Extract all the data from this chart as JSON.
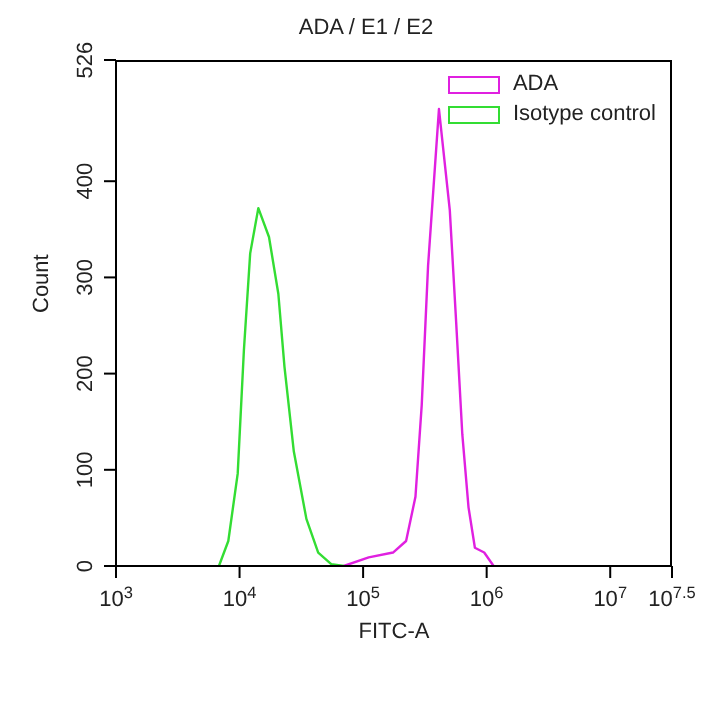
{
  "chart_data": {
    "type": "line",
    "title": "ADA / E1 / E2",
    "xlabel": "FITC-A",
    "ylabel": "Count",
    "log": "x",
    "legend": "top right",
    "marker": "none",
    "line_style": "solid",
    "xlim": [
      1000,
      31622777
    ],
    "xticks": [
      {
        "value": 1000,
        "label": "10$^{3}$"
      },
      {
        "value": 10000,
        "label": "10$^{4}$"
      },
      {
        "value": 100000,
        "label": "10$^{5}$"
      },
      {
        "value": 1000000,
        "label": "10$^{6}$"
      },
      {
        "value": 10000000,
        "label": "10$^{7}$"
      },
      {
        "value": 31622777,
        "label": "10$^{7.5}$"
      }
    ],
    "ylim": [
      0,
      526
    ],
    "yticks": [
      0,
      100,
      200,
      300,
      400,
      526
    ],
    "series": [
      {
        "name": "ADA",
        "color": "#e020e0",
        "x": [
          69800,
          111000,
          174600,
          222800,
          265300,
          298000,
          335500,
          411000,
          503000,
          566000,
          635000,
          713000,
          803000,
          955000,
          1138000
        ],
        "values": [
          0,
          9,
          14,
          26,
          72,
          167,
          312,
          475,
          370,
          254,
          137,
          61,
          19,
          14,
          0
        ]
      },
      {
        "name": "Isotype control",
        "color": "#33dd33",
        "x": [
          6810,
          8110,
          9660,
          10840,
          12190,
          14190,
          17310,
          20600,
          23100,
          27500,
          34750,
          43300,
          55200,
          70000
        ],
        "values": [
          0,
          26,
          96,
          224,
          325,
          372,
          342,
          283,
          207,
          119,
          49,
          14,
          2,
          0
        ]
      }
    ]
  }
}
